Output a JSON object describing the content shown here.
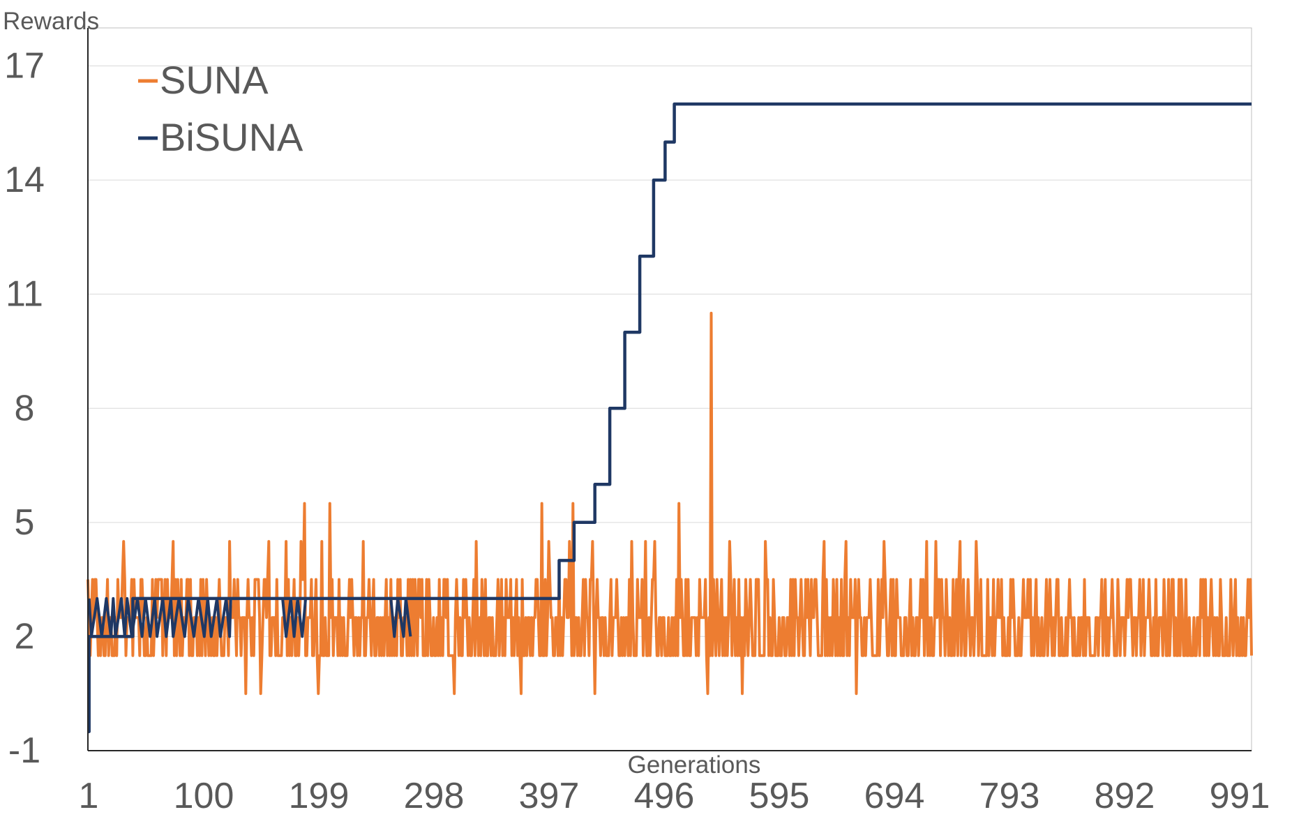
{
  "chart_data": {
    "type": "line",
    "title": "",
    "xlabel": "Generations",
    "ylabel": "Rewards",
    "xlim": [
      1,
      1011
    ],
    "ylim": [
      -1,
      18
    ],
    "x_ticks": [
      "1",
      "100",
      "199",
      "298",
      "397",
      "496",
      "595",
      "694",
      "793",
      "892",
      "991"
    ],
    "y_ticks": [
      "-1",
      "2",
      "5",
      "8",
      "11",
      "14",
      "17"
    ],
    "grid": true,
    "legend": "top-left",
    "series": [
      {
        "name": "SUNA",
        "color": "#ED7D31",
        "noise_base": [
          1.5,
          2.5,
          3.5
        ],
        "spikes": [
          [
            15,
            0.5
          ],
          [
            26,
            4.5
          ],
          [
            29,
            4.5
          ],
          [
            43,
            4.5
          ],
          [
            71,
            4.5
          ],
          [
            124,
            0.5
          ],
          [
            178,
            4.5
          ],
          [
            249,
            4.5
          ],
          [
            329,
            4.5
          ],
          [
            352,
            0.5
          ],
          [
            373,
            0.5
          ],
          [
            385,
            4.5
          ],
          [
            410,
            4.5
          ],
          [
            431,
            4.5
          ],
          [
            436,
            5.5
          ],
          [
            456,
            0.5
          ],
          [
            462,
            4.5
          ],
          [
            472,
            5.5
          ],
          [
            521,
            4.5
          ],
          [
            651,
            0.5
          ],
          [
            682,
            4.5
          ],
          [
            747,
            0.5
          ],
          [
            777,
            5.5
          ],
          [
            786,
            4.5
          ],
          [
            817,
            4.5
          ],
          [
            822,
            5.5
          ],
          [
            849,
            4.5
          ],
          [
            853,
            0.5
          ],
          [
            906,
            4.5
          ],
          [
            926,
            4.5
          ],
          [
            938,
            4.5
          ],
          [
            974,
            5.5
          ],
          [
            1015,
            0.5
          ],
          [
            1020,
            10.5
          ],
          [
            1046,
            4.5
          ],
          [
            1064,
            0.5
          ],
          [
            1097,
            4.5
          ],
          [
            1181,
            4.5
          ],
          [
            1212,
            4.5
          ],
          [
            1228,
            0.5
          ],
          [
            1267,
            4.5
          ],
          [
            1329,
            4.5
          ],
          [
            1341,
            4.5
          ],
          [
            1376,
            4.5
          ],
          [
            1400,
            4.5
          ]
        ]
      },
      {
        "name": "BiSUNA",
        "color": "#1F3864",
        "values": [
          [
            1,
            -0.5
          ],
          [
            2,
            2
          ],
          [
            40,
            3
          ],
          [
            397,
            3
          ],
          [
            410,
            4
          ],
          [
            423,
            5
          ],
          [
            441,
            6
          ],
          [
            454,
            8
          ],
          [
            467,
            10
          ],
          [
            480,
            12
          ],
          [
            492,
            14
          ],
          [
            502,
            15
          ],
          [
            510,
            16
          ],
          [
            1011,
            16
          ]
        ],
        "oscillation": {
          "range": [
            2,
            3
          ],
          "intervals": [
            [
              2,
              125
            ],
            [
              170,
              190
            ],
            [
              264,
              281
            ]
          ]
        }
      }
    ]
  }
}
